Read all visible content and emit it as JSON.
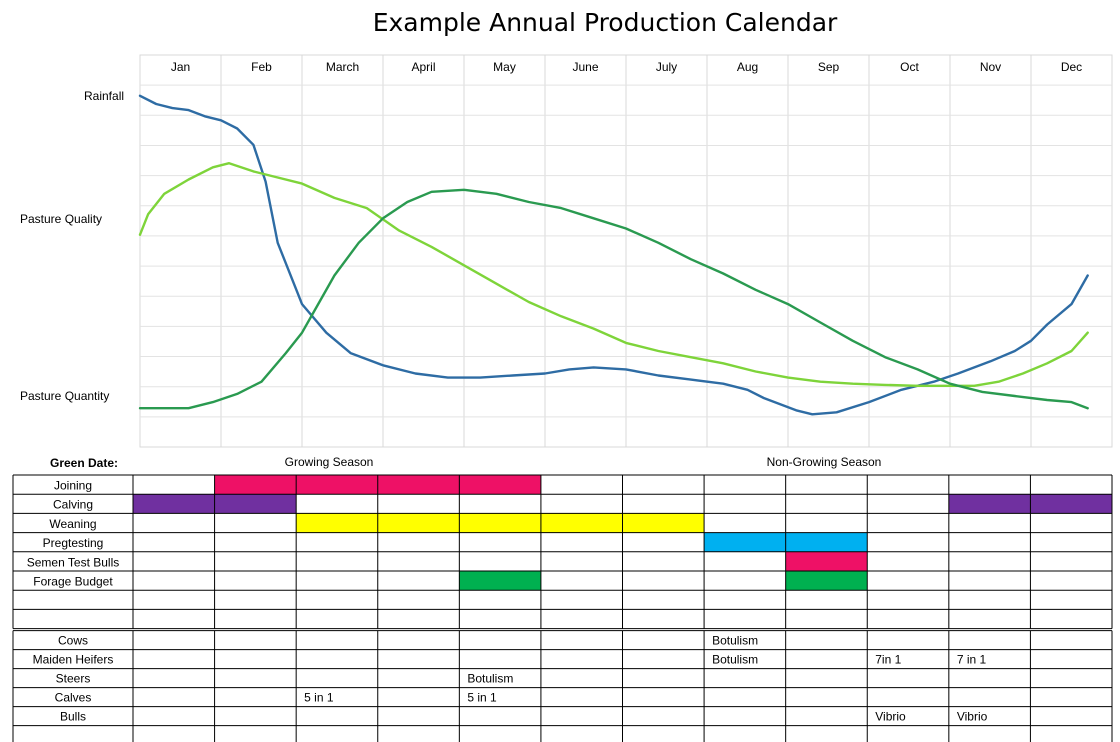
{
  "chart_data": {
    "type": "line",
    "title": "Example Annual Production Calendar",
    "months": [
      "Jan",
      "Feb",
      "March",
      "April",
      "May",
      "June",
      "July",
      "Aug",
      "Sep",
      "Oct",
      "Nov",
      "Dec"
    ],
    "y_labels": [
      "Rainfall",
      "Pasture Quality",
      "Pasture Quantity"
    ],
    "grid": true,
    "series": [
      {
        "color": "#2e6ca4",
        "x": [
          0.0,
          0.2,
          0.4,
          0.6,
          0.8,
          1.0,
          1.2,
          1.4,
          1.55,
          1.7,
          2.0,
          2.3,
          2.6,
          3.0,
          3.4,
          3.8,
          4.2,
          4.6,
          5.0,
          5.3,
          5.6,
          6.0,
          6.4,
          6.8,
          7.2,
          7.5,
          7.7,
          7.9,
          8.1,
          8.3,
          8.6,
          9.0,
          9.4,
          9.8,
          10.1,
          10.5,
          10.8,
          11.0,
          11.2,
          11.5,
          11.7
        ],
        "y": [
          8.6,
          8.4,
          8.3,
          8.25,
          8.1,
          8.0,
          7.8,
          7.4,
          6.5,
          5.0,
          3.5,
          2.8,
          2.3,
          2.0,
          1.8,
          1.7,
          1.7,
          1.75,
          1.8,
          1.9,
          1.95,
          1.9,
          1.75,
          1.65,
          1.55,
          1.4,
          1.2,
          1.05,
          0.9,
          0.8,
          0.85,
          1.1,
          1.4,
          1.6,
          1.8,
          2.1,
          2.35,
          2.6,
          3.0,
          3.5,
          4.2
        ]
      },
      {
        "color": "#7ed43a",
        "x": [
          0.0,
          0.1,
          0.3,
          0.6,
          0.9,
          1.1,
          1.4,
          1.7,
          2.0,
          2.4,
          2.8,
          3.2,
          3.6,
          4.0,
          4.4,
          4.8,
          5.2,
          5.6,
          6.0,
          6.4,
          6.8,
          7.2,
          7.6,
          8.0,
          8.4,
          8.8,
          9.2,
          9.6,
          10.0,
          10.3,
          10.6,
          10.9,
          11.2,
          11.5,
          11.7
        ],
        "y": [
          5.2,
          5.7,
          6.2,
          6.55,
          6.85,
          6.95,
          6.75,
          6.6,
          6.45,
          6.1,
          5.85,
          5.3,
          4.9,
          4.45,
          4.0,
          3.55,
          3.2,
          2.9,
          2.55,
          2.35,
          2.2,
          2.05,
          1.85,
          1.7,
          1.6,
          1.55,
          1.52,
          1.5,
          1.5,
          1.5,
          1.6,
          1.8,
          2.05,
          2.35,
          2.8
        ]
      },
      {
        "color": "#2a9a50",
        "x": [
          0.0,
          0.3,
          0.6,
          0.9,
          1.2,
          1.5,
          1.8,
          2.0,
          2.2,
          2.4,
          2.7,
          3.0,
          3.3,
          3.6,
          4.0,
          4.4,
          4.8,
          5.2,
          5.6,
          6.0,
          6.4,
          6.8,
          7.2,
          7.6,
          8.0,
          8.4,
          8.8,
          9.2,
          9.6,
          10.0,
          10.4,
          10.8,
          11.2,
          11.5,
          11.7
        ],
        "y": [
          0.95,
          0.95,
          0.95,
          1.1,
          1.3,
          1.6,
          2.3,
          2.8,
          3.5,
          4.2,
          5.0,
          5.6,
          6.0,
          6.25,
          6.3,
          6.2,
          6.0,
          5.85,
          5.6,
          5.35,
          5.0,
          4.6,
          4.25,
          3.85,
          3.5,
          3.05,
          2.6,
          2.2,
          1.9,
          1.55,
          1.35,
          1.25,
          1.15,
          1.1,
          0.95
        ]
      }
    ],
    "ylim": [
      0,
      9.6
    ]
  },
  "calendar": {
    "green_date_label": "Green Date:",
    "growing_season_label": "Growing Season",
    "non_growing_season_label": "Non-Growing Season",
    "activities": [
      {
        "label": "Joining",
        "bars": [
          {
            "start": 1,
            "end": 5,
            "color": "#ee1166"
          }
        ]
      },
      {
        "label": "Calving",
        "bars": [
          {
            "start": 0,
            "end": 2,
            "color": "#7030a0"
          },
          {
            "start": 10,
            "end": 12,
            "color": "#7030a0"
          }
        ]
      },
      {
        "label": "Weaning",
        "bars": [
          {
            "start": 2,
            "end": 7,
            "color": "#ffff00"
          }
        ]
      },
      {
        "label": "Pregtesting",
        "bars": [
          {
            "start": 7,
            "end": 9,
            "color": "#00b0f0"
          }
        ]
      },
      {
        "label": "Semen Test Bulls",
        "bars": [
          {
            "start": 8,
            "end": 9,
            "color": "#ee1166"
          }
        ]
      },
      {
        "label": "Forage Budget",
        "bars": [
          {
            "start": 4,
            "end": 5,
            "color": "#00b050"
          },
          {
            "start": 8,
            "end": 9,
            "color": "#00b050"
          }
        ]
      },
      {
        "label": "",
        "bars": []
      },
      {
        "label": "",
        "bars": []
      }
    ],
    "vaccinations": [
      {
        "label": "Cows",
        "entries": [
          {
            "month": 7,
            "text": "Botulism"
          }
        ]
      },
      {
        "label": "Maiden Heifers",
        "entries": [
          {
            "month": 7,
            "text": "Botulism"
          },
          {
            "month": 9,
            "text": "7in 1"
          },
          {
            "month": 10,
            "text": "7 in 1"
          }
        ]
      },
      {
        "label": "Steers",
        "entries": [
          {
            "month": 4,
            "text": "Botulism"
          }
        ]
      },
      {
        "label": "Calves",
        "entries": [
          {
            "month": 2,
            "text": "5 in 1"
          },
          {
            "month": 4,
            "text": "5 in 1"
          }
        ]
      },
      {
        "label": "Bulls",
        "entries": [
          {
            "month": 9,
            "text": "Vibrio"
          },
          {
            "month": 10,
            "text": "Vibrio"
          }
        ]
      },
      {
        "label": "",
        "entries": []
      }
    ]
  }
}
